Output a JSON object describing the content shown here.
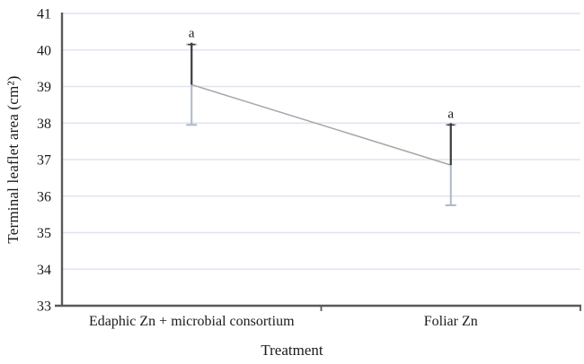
{
  "chart_data": {
    "type": "line",
    "title": "",
    "xlabel": "Treatment",
    "ylabel": "Terminal leaflet area (cm²)",
    "categories": [
      "Edaphic Zn + microbial consortium",
      "Foliar Zn"
    ],
    "series": [
      {
        "name": "Terminal leaflet area",
        "values": [
          39.05,
          36.85
        ],
        "error_upper": [
          1.1,
          1.1
        ],
        "error_lower": [
          1.1,
          1.1
        ],
        "point_labels": [
          "a",
          "a"
        ]
      }
    ],
    "ylim": [
      33,
      41
    ],
    "yticks": [
      41,
      40,
      39,
      38,
      37,
      36,
      35,
      34,
      33
    ],
    "grid": "horizontal-only",
    "legend": "none"
  },
  "colors": {
    "background": "#ffffff",
    "gridline": "#e0e4ef",
    "axis": "#595959",
    "series_line": "#a6a6a6",
    "error_upper": "#3a3a3a",
    "error_lower": "#aeb8c8",
    "text": "#1a1a1a"
  }
}
